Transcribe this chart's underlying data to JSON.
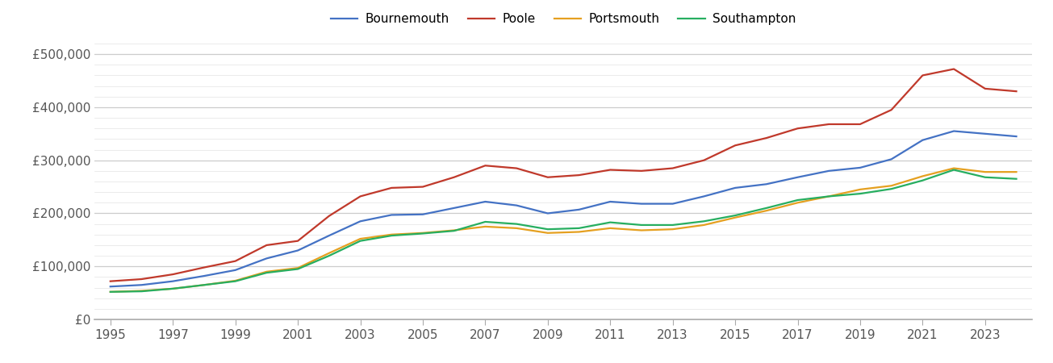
{
  "years": [
    1995,
    1996,
    1997,
    1998,
    1999,
    2000,
    2001,
    2002,
    2003,
    2004,
    2005,
    2006,
    2007,
    2008,
    2009,
    2010,
    2011,
    2012,
    2013,
    2014,
    2015,
    2016,
    2017,
    2018,
    2019,
    2020,
    2021,
    2022,
    2023,
    2024
  ],
  "Bournemouth": [
    62000,
    65000,
    72000,
    82000,
    93000,
    115000,
    130000,
    158000,
    185000,
    197000,
    198000,
    210000,
    222000,
    215000,
    200000,
    207000,
    222000,
    218000,
    218000,
    232000,
    248000,
    255000,
    268000,
    280000,
    286000,
    302000,
    338000,
    355000,
    350000,
    345000
  ],
  "Poole": [
    72000,
    76000,
    85000,
    98000,
    110000,
    140000,
    148000,
    195000,
    232000,
    248000,
    250000,
    268000,
    290000,
    285000,
    268000,
    272000,
    282000,
    280000,
    285000,
    300000,
    328000,
    342000,
    360000,
    368000,
    368000,
    395000,
    460000,
    472000,
    435000,
    430000
  ],
  "Portsmouth": [
    52000,
    54000,
    58000,
    65000,
    73000,
    90000,
    97000,
    125000,
    152000,
    160000,
    163000,
    168000,
    175000,
    172000,
    163000,
    165000,
    172000,
    168000,
    170000,
    178000,
    192000,
    205000,
    220000,
    232000,
    245000,
    252000,
    270000,
    285000,
    278000,
    278000
  ],
  "Southampton": [
    52000,
    53000,
    58000,
    65000,
    72000,
    88000,
    95000,
    120000,
    148000,
    158000,
    162000,
    167000,
    184000,
    180000,
    170000,
    172000,
    183000,
    178000,
    178000,
    185000,
    196000,
    210000,
    225000,
    232000,
    237000,
    246000,
    262000,
    282000,
    268000,
    265000
  ],
  "colors": {
    "Bournemouth": "#4472c4",
    "Poole": "#c0392b",
    "Portsmouth": "#e5a020",
    "Southampton": "#27ae60"
  },
  "ylim": [
    0,
    520000
  ],
  "yticks": [
    0,
    100000,
    200000,
    300000,
    400000,
    500000
  ],
  "ytick_labels": [
    "£0",
    "£100,000",
    "£200,000",
    "£300,000",
    "£400,000",
    "£500,000"
  ],
  "xticks": [
    1995,
    1997,
    1999,
    2001,
    2003,
    2005,
    2007,
    2009,
    2011,
    2013,
    2015,
    2017,
    2019,
    2021,
    2023
  ],
  "xlim": [
    1994.5,
    2024.5
  ],
  "background_color": "#ffffff",
  "major_grid_color": "#cccccc",
  "minor_grid_color": "#e8e8e8",
  "linewidth": 1.6
}
